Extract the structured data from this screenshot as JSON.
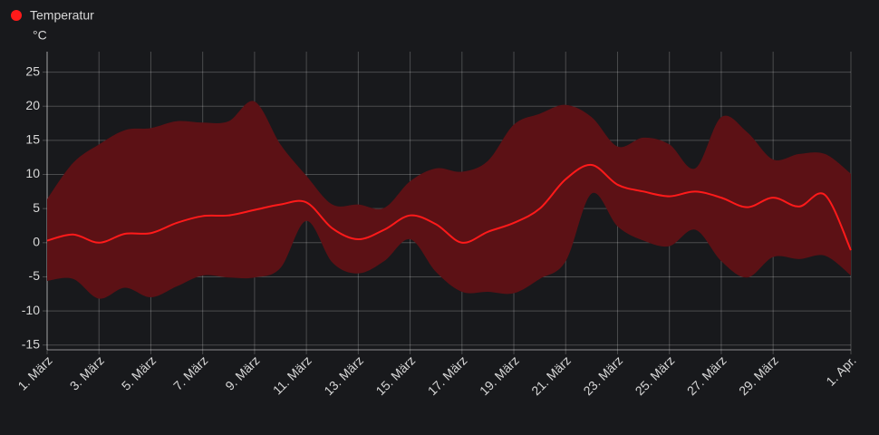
{
  "chart_data": {
    "type": "line",
    "y_label": "°C",
    "categories": [
      "1. März",
      null,
      "3. März",
      null,
      "5. März",
      null,
      "7. März",
      null,
      "9. März",
      null,
      "11. März",
      null,
      "13. März",
      null,
      "15. März",
      null,
      "17. März",
      null,
      "19. März",
      null,
      "21. März",
      null,
      "23. März",
      null,
      "25. März",
      null,
      "27. März",
      null,
      "29. März",
      null,
      null,
      "1. Apr."
    ],
    "series": [
      {
        "name": "Temperatur",
        "color": "#ff1a1a",
        "values": [
          0.3,
          1.2,
          0,
          1.3,
          1.4,
          2.9,
          3.9,
          4.0,
          4.8,
          5.6,
          5.9,
          2.1,
          0.5,
          1.9,
          4.0,
          2.7,
          0,
          1.6,
          2.9,
          5.0,
          9.3,
          11.4,
          8.5,
          7.5,
          6.8,
          7.5,
          6.6,
          5.2,
          6.6,
          5.3,
          7.0,
          -1.1
        ]
      }
    ],
    "band": {
      "color": "#5c1115",
      "upper": [
        6.4,
        11.7,
        14.4,
        16.5,
        16.8,
        17.8,
        17.6,
        17.8,
        20.7,
        14.4,
        9.8,
        5.6,
        5.6,
        5.1,
        9.0,
        10.9,
        10.4,
        12.0,
        17.3,
        18.9,
        20.2,
        18.4,
        14.1,
        15.4,
        14.4,
        10.9,
        18.4,
        16.2,
        12.2,
        13.0,
        13.0,
        10.1
      ],
      "lower": [
        -5.6,
        -5.3,
        -8.2,
        -6.6,
        -8.0,
        -6.4,
        -4.8,
        -5.1,
        -5.1,
        -3.7,
        3.2,
        -2.9,
        -4.5,
        -2.7,
        0.5,
        -4.3,
        -7.2,
        -7.2,
        -7.4,
        -5.3,
        -2.7,
        7.2,
        2.4,
        0.3,
        -0.5,
        1.9,
        -2.7,
        -5.1,
        -2.1,
        -2.4,
        -1.9,
        -4.8
      ]
    },
    "ylim": [
      -15.7,
      28
    ],
    "yticks": [
      -15,
      -10,
      -5,
      0,
      5,
      10,
      15,
      20,
      25
    ],
    "grid": true
  }
}
